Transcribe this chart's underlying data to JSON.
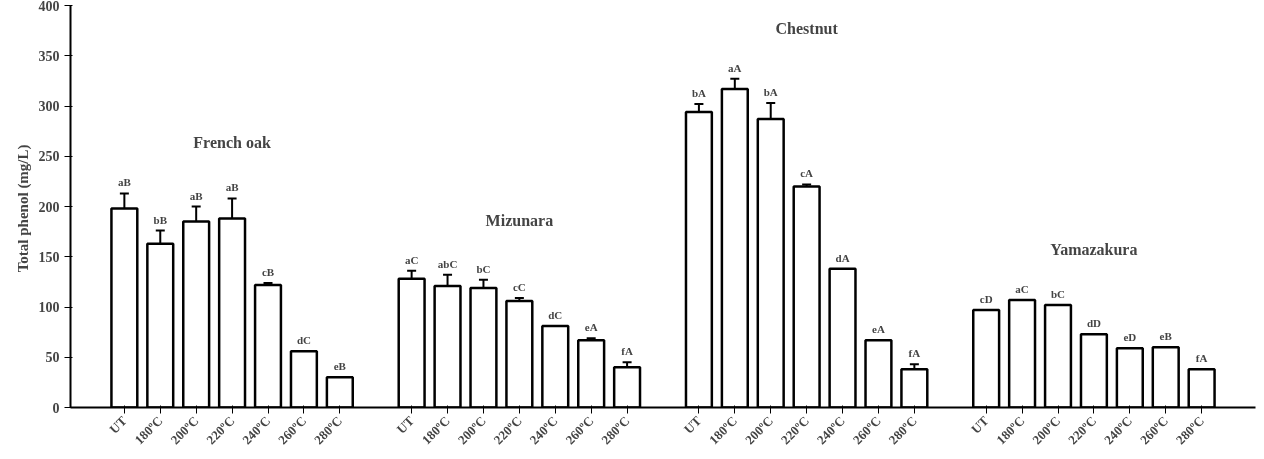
{
  "chart_data": {
    "type": "bar",
    "ylabel": "Total phenol  (mg/L)",
    "categories": [
      null,
      "UT",
      "180ºC",
      "200ºC",
      "220ºC",
      "240ºC",
      "260ºC",
      "280ºC",
      null,
      "UT",
      "180ºC",
      "200ºC",
      "220ºC",
      "240ºC",
      "260ºC",
      "280ºC",
      null,
      "UT",
      "180ºC",
      "200ºC",
      "220ºC",
      "240ºC",
      "260ºC",
      "280ºC",
      null,
      "UT",
      "180ºC",
      "200ºC",
      "220ºC",
      "240ºC",
      "260ºC",
      "280ºC",
      null
    ],
    "values": [
      null,
      198,
      163,
      185,
      188,
      122,
      56,
      30,
      null,
      128,
      121,
      119,
      106,
      81,
      67,
      40,
      null,
      294,
      317,
      287,
      220,
      138,
      67,
      38,
      null,
      97,
      107,
      102,
      73,
      59,
      60,
      38,
      null
    ],
    "errors": [
      null,
      15,
      13,
      15,
      20,
      2,
      null,
      null,
      null,
      8,
      11,
      8,
      3,
      null,
      2,
      5,
      null,
      8,
      10,
      16,
      2,
      null,
      null,
      5,
      null,
      null,
      null,
      null,
      null,
      null,
      null,
      null,
      null
    ],
    "value_labels": [
      null,
      "aB",
      "bB",
      "aB",
      "aB",
      "cB",
      "dC",
      "eB",
      null,
      "aC",
      "abC",
      "bC",
      "cC",
      "dC",
      "eA",
      "fA",
      null,
      "bA",
      "aA",
      "bA",
      "cA",
      "dA",
      "eA",
      "fA",
      null,
      "cD",
      "aC",
      "bC",
      "dD",
      "eD",
      "eB",
      "fA",
      null
    ],
    "color": "#ffffff",
    "ylim": [
      0,
      400
    ],
    "yticks": [
      0,
      50,
      100,
      150,
      200,
      250,
      300,
      350,
      400
    ],
    "annotations": [
      "French oak",
      "Mizunara",
      "Chestnut",
      "Yamazakura"
    ]
  }
}
